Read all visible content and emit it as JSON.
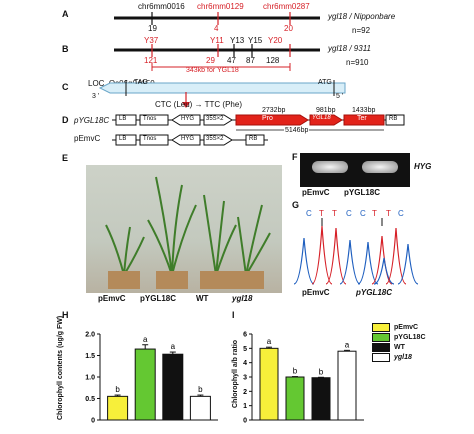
{
  "panel_labels": {
    "A": "A",
    "B": "B",
    "C": "C",
    "D": "D",
    "E": "E",
    "F": "F",
    "G": "G",
    "H": "H",
    "I": "I"
  },
  "panel_a": {
    "markers": [
      "chr6mm0016",
      "chr6mm0129",
      "chr6mm0287"
    ],
    "counts": [
      "19",
      "4",
      "20"
    ],
    "line_label": "ygl18 / Nipponbare",
    "n": "n=92"
  },
  "panel_b": {
    "markers": [
      "Y37",
      "Y11",
      "Y13",
      "Y15",
      "Y20"
    ],
    "counts": [
      "121",
      "29",
      "47",
      "87",
      "128"
    ],
    "line_label": "ygl18 / 9311",
    "n": "n=910",
    "interval": "343kb for YGL18"
  },
  "panel_c": {
    "gene": "LOC_Os06g04150",
    "tag": "TAG",
    "atg": "ATG",
    "end3": "3 '",
    "end5": "5 '",
    "mutation": "CTC (Leu) → TTC (Phe)"
  },
  "panel_d": {
    "construct1": "pYGL18C",
    "construct2": "pEmvC",
    "lb": "LB",
    "tnos": "Tnos",
    "hyg": "HYG",
    "promoter35s": "35S×2",
    "rb": "RB",
    "pro": "Pro",
    "ygl18": "YGL18",
    "ter": "Ter",
    "len_pro": "2732bp",
    "len_gene": "981bp",
    "len_ter": "1433bp",
    "total": "5146bp"
  },
  "panel_e": {
    "labels": [
      "pEmvC",
      "pYGL18C",
      "WT",
      "ygl18"
    ]
  },
  "panel_f": {
    "gene": "HYG",
    "lanes": [
      "pEmvC",
      "pYGL18C"
    ]
  },
  "panel_g": {
    "seq1": [
      "C",
      "T",
      "T",
      "C"
    ],
    "seq2": [
      "C",
      "T",
      "T",
      "C"
    ],
    "lanes": [
      "pEmvC",
      "pYGL18C"
    ]
  },
  "legend": [
    "pEmvC",
    "pYGL18C",
    "WT",
    "ygl18"
  ],
  "colors": {
    "pEmvC": "#f7ef3a",
    "pYGL18C": "#64c832",
    "WT": "#111111",
    "ygl18": "#ffffff",
    "red": "#d62027"
  },
  "chart_data": [
    {
      "type": "bar",
      "ylabel": "Chlorophyll contents (ug/g FW)",
      "ylim": [
        0,
        2.0
      ],
      "yticks": [
        "0",
        "0.5",
        "1.0",
        "1.5",
        "2.0"
      ],
      "categories": [
        "pEmvC",
        "pYGL18C",
        "WT",
        "ygl18"
      ],
      "values": [
        0.55,
        1.65,
        1.53,
        0.55
      ],
      "errors": [
        0.03,
        0.1,
        0.05,
        0.03
      ],
      "letters": [
        "b",
        "a",
        "a",
        "b"
      ]
    },
    {
      "type": "bar",
      "ylabel": "Chlorophyll a/b ratio",
      "ylim": [
        0,
        6
      ],
      "yticks": [
        "0",
        "1",
        "2",
        "3",
        "4",
        "5",
        "6"
      ],
      "categories": [
        "pEmvC",
        "pYGL18C",
        "WT",
        "ygl18"
      ],
      "values": [
        5.0,
        3.0,
        2.95,
        4.8
      ],
      "errors": [
        0.08,
        0.03,
        0.03,
        0.06
      ],
      "letters": [
        "a",
        "b",
        "b",
        "a"
      ]
    }
  ]
}
